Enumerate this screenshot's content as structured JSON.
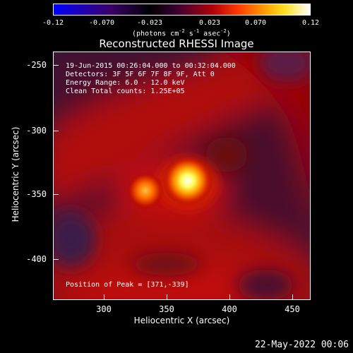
{
  "colorbar": {
    "ticks": [
      "-0.12",
      "-0.070",
      "-0.023",
      "0.023",
      "0.070",
      "0.12"
    ],
    "units_prefix": "(photons cm",
    "units_exp1": "-2",
    "units_mid": " s",
    "units_exp2": "-1",
    "units_mid2": " asec",
    "units_exp3": "-2",
    "units_suffix": ")",
    "colors": [
      "#0000ff",
      "#000000",
      "#ffff00",
      "#ffffff"
    ]
  },
  "plot": {
    "title": "Reconstructed RHESSI Image",
    "time_range": "19-Jun-2015 00:26:04.000 to 00:32:04.000",
    "detectors": "Detectors: 3F 5F 6F 7F 8F 9F, Att 0",
    "energy_range": "Energy Range: 6.0 - 12.0 keV",
    "method_counts": "Clean    Total counts: 1.25E+05",
    "peak_position": "Position of Peak = [371,-339]",
    "xlabel": "Heliocentric X (arcsec)",
    "ylabel": "Heliocentric Y (arcsec)",
    "xticks": [
      "300",
      "350",
      "400",
      "450"
    ],
    "yticks": [
      "-250",
      "-300",
      "-350",
      "-400"
    ]
  },
  "footer": {
    "date": "22-May-2022 00:06"
  }
}
